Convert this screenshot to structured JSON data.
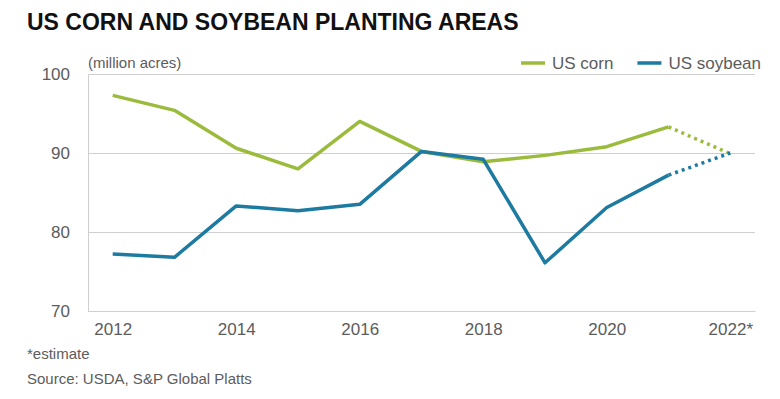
{
  "chart_data": {
    "type": "line",
    "title": "US CORN AND SOYBEAN PLANTING AREAS",
    "ylabel": "(million acres)",
    "notes": [
      "*estimate",
      "Source: USDA, S&P Global Platts"
    ],
    "x": [
      2012,
      2013,
      2014,
      2015,
      2016,
      2017,
      2018,
      2019,
      2020,
      2021,
      2022
    ],
    "series": [
      {
        "name": "US corn",
        "color": "#9bbb3c",
        "values": [
          97.3,
          95.4,
          90.6,
          88.0,
          94.0,
          90.2,
          88.9,
          89.7,
          90.8,
          93.3,
          89.9
        ]
      },
      {
        "name": "US soybean",
        "color": "#1d7aa0",
        "values": [
          77.2,
          76.8,
          83.3,
          82.7,
          83.5,
          90.2,
          89.2,
          76.1,
          83.1,
          87.2,
          90.0
        ]
      }
    ],
    "xlim": [
      2011.6,
      2022.4
    ],
    "xticks": [
      2012,
      2014,
      2016,
      2018,
      2020,
      {
        "value": 2022,
        "label": "2022*"
      }
    ],
    "ylim": [
      70,
      100
    ],
    "yticks": [
      70,
      80,
      90,
      100
    ],
    "grid": true,
    "legend": "top-right"
  }
}
